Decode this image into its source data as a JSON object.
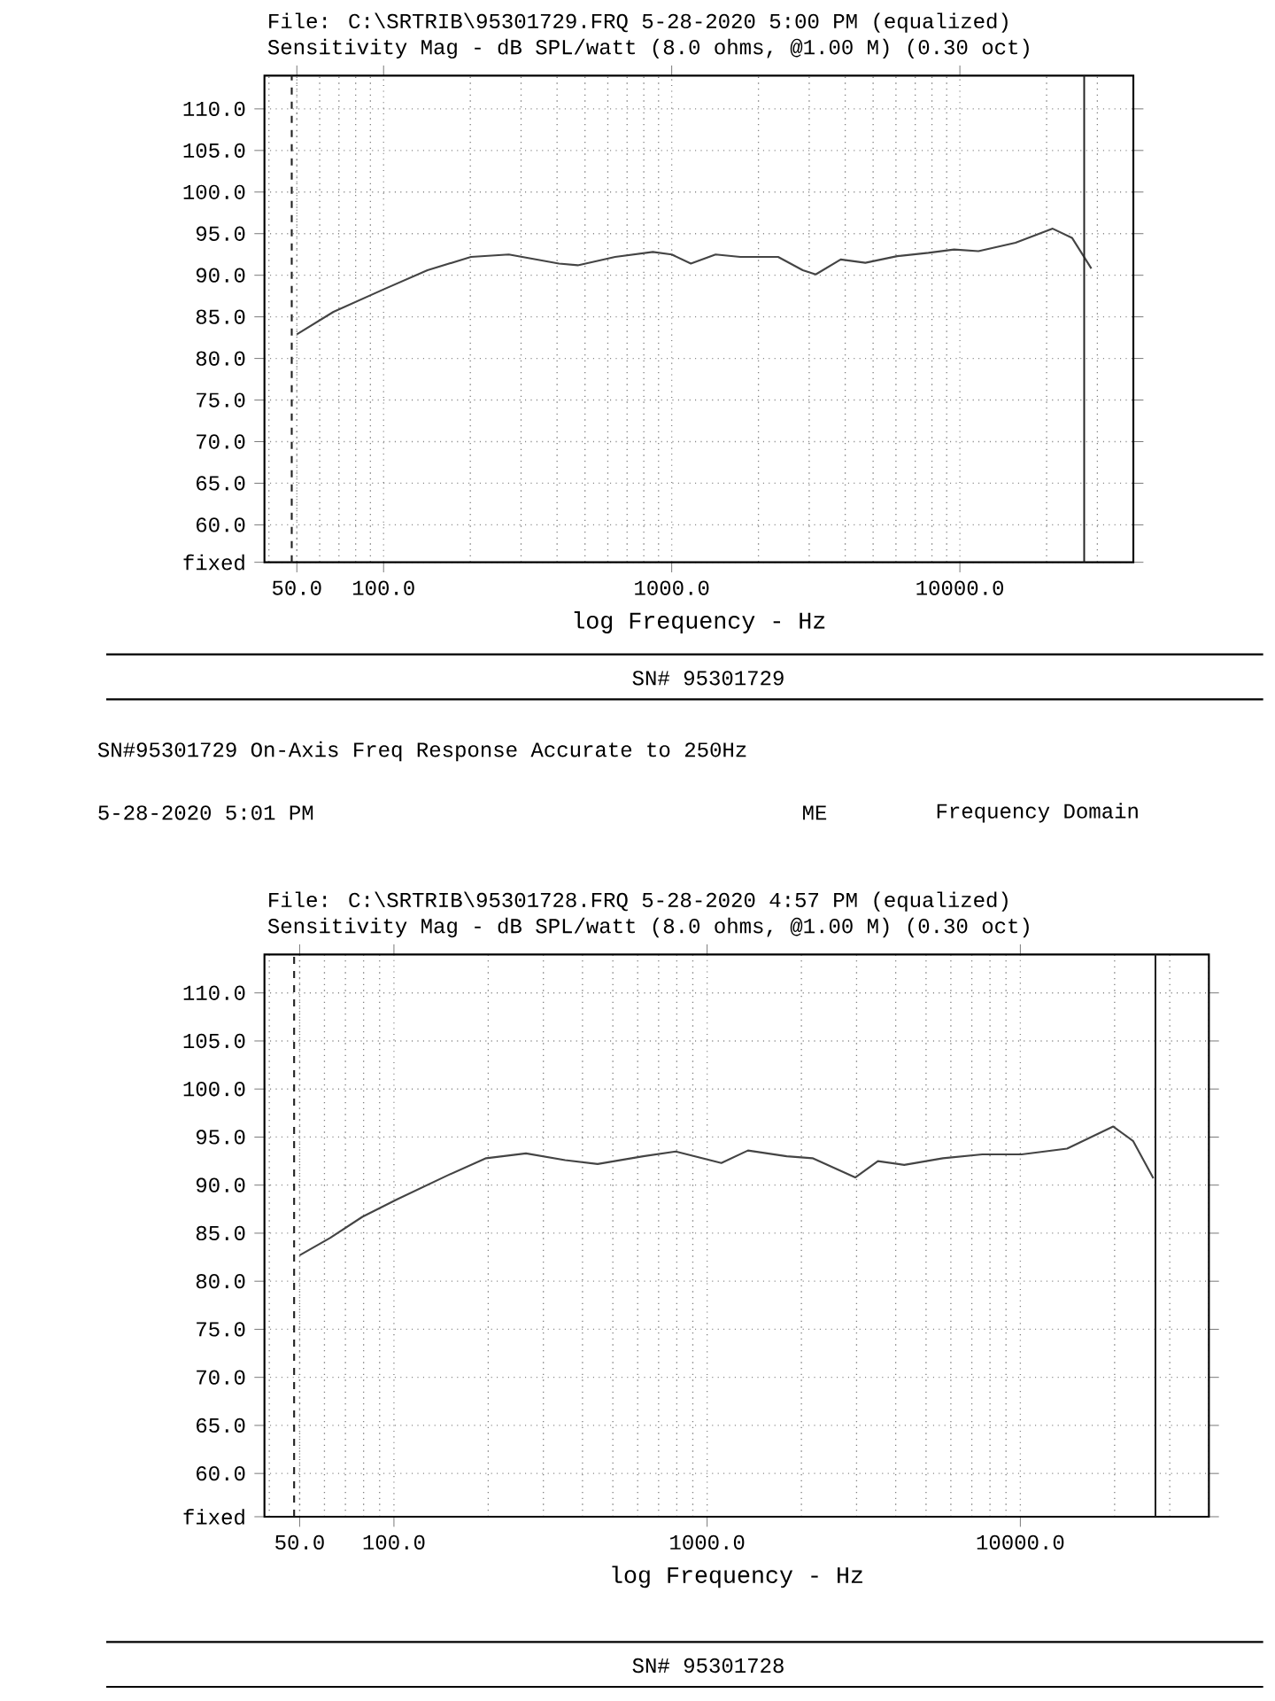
{
  "chart_data": [
    {
      "type": "line",
      "title": "File: C:\\SRTRIB\\95301729.FRQ 5-28-2020 5:00 PM (equalized)",
      "subtitle": "Sensitivity Mag - dB SPL/watt (8.0 ohms, @1.00 M) (0.30 oct)",
      "xlabel": "log Frequency - Hz",
      "log": "x",
      "grid": true,
      "marker": "none",
      "line_style": "solid",
      "xlim": [
        38.6,
        40000
      ],
      "ylim": [
        55.5,
        114
      ],
      "xticks": [
        {
          "value": 50,
          "label": "50.0"
        },
        {
          "value": 100,
          "label": "100.0"
        },
        {
          "value": 1000,
          "label": "1000.0"
        },
        {
          "value": 10000,
          "label": "10000.0"
        }
      ],
      "yticks": [
        {
          "value": 55.5,
          "label": "fixed"
        },
        {
          "value": 60,
          "label": "60.0"
        },
        {
          "value": 65,
          "label": "65.0"
        },
        {
          "value": 70,
          "label": "70.0"
        },
        {
          "value": 75,
          "label": "75.0"
        },
        {
          "value": 80,
          "label": "80.0"
        },
        {
          "value": 85,
          "label": "85.0"
        },
        {
          "value": 90,
          "label": "90.0"
        },
        {
          "value": 95,
          "label": "95.0"
        },
        {
          "value": 100,
          "label": "100.0"
        },
        {
          "value": 105,
          "label": "105.0"
        },
        {
          "value": 110,
          "label": "110.0"
        }
      ],
      "ref_lines": [
        {
          "axis": "x",
          "value": 48,
          "line_style": "dashed",
          "color": "#222222"
        },
        {
          "axis": "x",
          "value": 27000,
          "line_style": "solid",
          "color": "#222222"
        }
      ],
      "series": [
        {
          "color": "#444444",
          "x": [
            50,
            67,
            100,
            142,
            201,
            272,
            406,
            472,
            636,
            860,
            1000,
            1165,
            1420,
            1730,
            2340,
            2850,
            3160,
            3860,
            4700,
            6060,
            7780,
            9550,
            11600,
            15600,
            21000,
            24500,
            28600
          ],
          "values": [
            82.9,
            85.6,
            88.3,
            90.6,
            92.2,
            92.5,
            91.4,
            91.2,
            92.2,
            92.8,
            92.5,
            91.4,
            92.5,
            92.2,
            92.2,
            90.6,
            90.1,
            91.9,
            91.5,
            92.3,
            92.7,
            93.1,
            92.9,
            93.9,
            95.6,
            94.5,
            90.8
          ]
        }
      ],
      "annotations": [
        "SN# 95301729",
        "SN#95301729 On-Axis Freq Response Accurate to 250Hz",
        "5-28-2020 5:01 PM",
        "ME",
        "Frequency Domain"
      ]
    },
    {
      "type": "line",
      "title": "File: C:\\SRTRIB\\95301728.FRQ 5-28-2020 4:57 PM (equalized)",
      "subtitle": "Sensitivity Mag - dB SPL/watt (8.0 ohms, @1.00 M) (0.30 oct)",
      "xlabel": "log Frequency - Hz",
      "log": "x",
      "grid": true,
      "marker": "none",
      "line_style": "solid",
      "xlim": [
        38.6,
        40000
      ],
      "ylim": [
        55.5,
        114
      ],
      "xticks": [
        {
          "value": 50,
          "label": "50.0"
        },
        {
          "value": 100,
          "label": "100.0"
        },
        {
          "value": 1000,
          "label": "1000.0"
        },
        {
          "value": 10000,
          "label": "10000.0"
        }
      ],
      "yticks": [
        {
          "value": 55.5,
          "label": "fixed"
        },
        {
          "value": 60,
          "label": "60.0"
        },
        {
          "value": 65,
          "label": "65.0"
        },
        {
          "value": 70,
          "label": "70.0"
        },
        {
          "value": 75,
          "label": "75.0"
        },
        {
          "value": 80,
          "label": "80.0"
        },
        {
          "value": 85,
          "label": "85.0"
        },
        {
          "value": 90,
          "label": "90.0"
        },
        {
          "value": 95,
          "label": "95.0"
        },
        {
          "value": 100,
          "label": "100.0"
        },
        {
          "value": 105,
          "label": "105.0"
        },
        {
          "value": 110,
          "label": "110.0"
        }
      ],
      "ref_lines": [
        {
          "axis": "x",
          "value": 48,
          "line_style": "dashed",
          "color": "#222222"
        },
        {
          "axis": "x",
          "value": 27000,
          "line_style": "solid",
          "color": "#222222"
        }
      ],
      "series": [
        {
          "color": "#444444",
          "x": [
            50,
            62.5,
            79.3,
            102,
            148,
            197,
            264,
            352,
            447,
            625,
            794,
            1110,
            1350,
            1795,
            2170,
            2970,
            3510,
            4260,
            5660,
            7560,
            10100,
            14100,
            19800,
            22900,
            26600
          ],
          "values": [
            82.7,
            84.5,
            86.7,
            88.5,
            91.0,
            92.8,
            93.3,
            92.6,
            92.2,
            93.0,
            93.5,
            92.3,
            93.6,
            93.0,
            92.8,
            90.8,
            92.5,
            92.1,
            92.8,
            93.2,
            93.2,
            93.8,
            96.1,
            94.6,
            90.7
          ]
        }
      ],
      "annotations": [
        "SN# 95301728"
      ]
    }
  ]
}
